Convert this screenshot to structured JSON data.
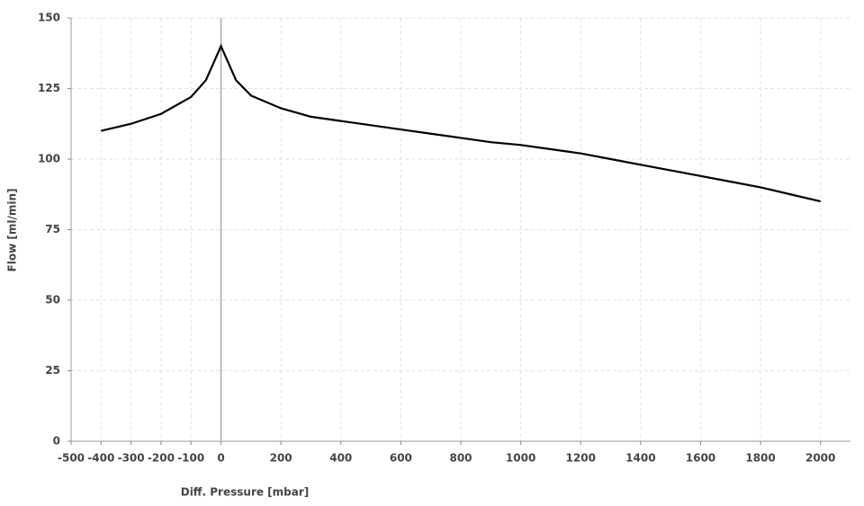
{
  "chart_data": {
    "type": "line",
    "x_label": "Diff. Pressure [mbar]",
    "y_label": "Flow [ml/min]",
    "x": [
      -400,
      -300,
      -200,
      -100,
      -50,
      0,
      50,
      100,
      200,
      300,
      400,
      500,
      600,
      700,
      800,
      900,
      1000,
      1100,
      1200,
      1300,
      1400,
      1500,
      1600,
      1700,
      1800,
      1900,
      2000
    ],
    "series": [
      {
        "name": "Flow",
        "color": "#000000",
        "values": [
          110,
          112.5,
          116,
          122,
          128,
          140,
          128,
          122.5,
          118,
          115,
          113.5,
          112,
          110.5,
          109,
          107.5,
          106,
          105,
          103.5,
          102,
          100,
          98,
          96,
          94,
          92,
          90,
          87.5,
          85
        ]
      }
    ],
    "xlim": [
      -500,
      2100
    ],
    "xticks": [
      -500,
      -400,
      -300,
      -200,
      -100,
      0,
      200,
      400,
      600,
      800,
      1000,
      1200,
      1400,
      1600,
      1800,
      2000
    ],
    "ylim": [
      0,
      150
    ],
    "yticks": [
      0,
      25,
      50,
      75,
      100,
      125,
      150
    ],
    "grid": true
  }
}
